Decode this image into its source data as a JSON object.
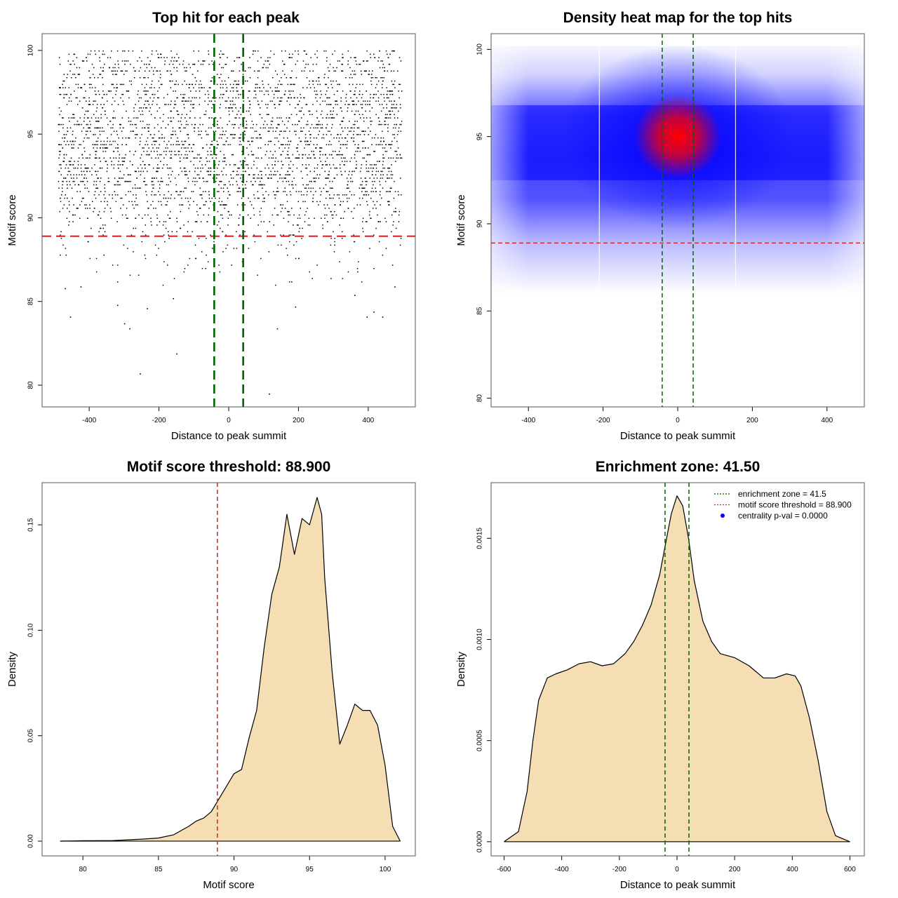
{
  "colors": {
    "threshold_line": "#d62728",
    "zone_line": "#006400",
    "density_fill": "#f5deb3",
    "density_stroke": "#000000",
    "points": "#000000",
    "heat_low": "#ffffff",
    "heat_mid": "#0000ff",
    "heat_high": "#ff0000",
    "legend_point": "#0000ff"
  },
  "chart_data": [
    {
      "id": "top-hits",
      "type": "scatter",
      "title": "Top hit for each peak",
      "xlabel": "Distance to peak summit",
      "ylabel": "Motif score",
      "xlim": [
        -535,
        535
      ],
      "ylim": [
        78.7,
        101
      ],
      "xticks": [
        -400,
        -200,
        0,
        200,
        400
      ],
      "yticks": [
        80,
        85,
        90,
        95,
        100
      ],
      "point_x_range": [
        -490,
        495
      ],
      "point_y_range": [
        79.5,
        100
      ],
      "sparse_points": [
        {
          "x": -255,
          "y": 80.7
        },
        {
          "x": 115,
          "y": 79.5
        },
        {
          "x": -150,
          "y": 81.9
        },
        {
          "x": -300,
          "y": 83.7
        },
        {
          "x": -285,
          "y": 83.4
        },
        {
          "x": 138,
          "y": 83.4
        },
        {
          "x": -455,
          "y": 84.1
        },
        {
          "x": -235,
          "y": 84.6
        },
        {
          "x": -320,
          "y": 84.8
        },
        {
          "x": -160,
          "y": 85.2
        },
        {
          "x": 190,
          "y": 84.7
        },
        {
          "x": 395,
          "y": 84.1
        },
        {
          "x": 440,
          "y": 84.1
        },
        {
          "x": 415,
          "y": 84.4
        },
        {
          "x": 475,
          "y": 85.9
        },
        {
          "x": -470,
          "y": 85.8
        },
        {
          "x": -425,
          "y": 85.9
        },
        {
          "x": 360,
          "y": 85.4
        }
      ],
      "hlines": [
        {
          "y": 88.9,
          "color": "threshold_line",
          "dash": "long"
        }
      ],
      "vlines": [
        {
          "x": -41.5,
          "color": "zone_line",
          "dash": "long"
        },
        {
          "x": 41.5,
          "color": "zone_line",
          "dash": "long"
        }
      ]
    },
    {
      "id": "heatmap",
      "type": "heatmap",
      "title": "Density heat map for the top hits",
      "xlabel": "Distance to peak summit",
      "ylabel": "Motif score",
      "xlim": [
        -500,
        500
      ],
      "ylim": [
        79.5,
        100.9
      ],
      "xticks": [
        -400,
        -200,
        0,
        200,
        400
      ],
      "yticks": [
        80,
        85,
        90,
        95,
        100
      ],
      "hotspot": {
        "x": 0,
        "y": 95
      },
      "band_y_range": [
        92.5,
        96.8
      ],
      "hlines": [
        {
          "y": 88.9,
          "color": "threshold_line"
        }
      ],
      "vlines": [
        {
          "x": -41.5,
          "color": "zone_line"
        },
        {
          "x": 41.5,
          "color": "zone_line"
        }
      ]
    },
    {
      "id": "score-density",
      "type": "area",
      "title": "Motif score threshold: 88.900",
      "xlabel": "Motif score",
      "ylabel": "Density",
      "xlim": [
        77.3,
        102.0
      ],
      "ylim": [
        -0.007,
        0.17
      ],
      "xticks": [
        80,
        85,
        90,
        95,
        100
      ],
      "yticks": [
        0.0,
        0.05,
        0.1,
        0.15
      ],
      "ytick_labels": [
        "0.00",
        "0.05",
        "0.10",
        "0.15"
      ],
      "x": [
        78.5,
        80,
        82,
        84,
        85,
        86,
        86.5,
        87,
        87.5,
        88,
        88.5,
        89,
        89.5,
        90,
        90.5,
        91,
        91.5,
        92,
        92.5,
        93,
        93.5,
        94,
        94.5,
        95,
        95.5,
        95.8,
        96,
        96.5,
        97,
        97.5,
        98,
        98.5,
        99,
        99.5,
        100,
        100.5,
        101
      ],
      "y": [
        0.0,
        0.0002,
        0.0003,
        0.001,
        0.0015,
        0.003,
        0.005,
        0.007,
        0.0095,
        0.011,
        0.014,
        0.02,
        0.026,
        0.032,
        0.034,
        0.049,
        0.062,
        0.092,
        0.117,
        0.13,
        0.155,
        0.136,
        0.153,
        0.15,
        0.163,
        0.155,
        0.125,
        0.08,
        0.046,
        0.055,
        0.065,
        0.062,
        0.062,
        0.055,
        0.036,
        0.007,
        0.0
      ],
      "vlines": [
        {
          "x": 88.9,
          "color": "threshold_line"
        }
      ]
    },
    {
      "id": "distance-density",
      "type": "area",
      "title": "Enrichment zone: 41.50",
      "xlabel": "Distance to peak summit",
      "ylabel": "Density",
      "xlim": [
        -645,
        650
      ],
      "ylim": [
        -7e-05,
        0.001775
      ],
      "xticks": [
        -600,
        -400,
        -200,
        0,
        200,
        400,
        600
      ],
      "yticks": [
        0.0,
        0.0005,
        0.001,
        0.0015
      ],
      "ytick_labels": [
        "0.0000",
        "0.0005",
        "0.0010",
        "0.0015"
      ],
      "x": [
        -600,
        -550,
        -520,
        -500,
        -480,
        -450,
        -420,
        -380,
        -340,
        -300,
        -260,
        -220,
        -180,
        -150,
        -120,
        -90,
        -60,
        -40,
        -20,
        0,
        20,
        40,
        60,
        90,
        120,
        150,
        200,
        250,
        300,
        340,
        380,
        410,
        430,
        460,
        490,
        520,
        550,
        600
      ],
      "y": [
        0.0,
        5e-05,
        0.00025,
        0.0005,
        0.0007,
        0.00081,
        0.00083,
        0.00085,
        0.00088,
        0.00089,
        0.00087,
        0.00088,
        0.00093,
        0.00099,
        0.00107,
        0.00117,
        0.00132,
        0.00147,
        0.00162,
        0.00171,
        0.00166,
        0.0015,
        0.00129,
        0.00109,
        0.00099,
        0.00093,
        0.00091,
        0.00087,
        0.00081,
        0.00081,
        0.00083,
        0.00082,
        0.00077,
        0.00061,
        0.0004,
        0.00015,
        3e-05,
        0.0
      ],
      "vlines": [
        {
          "x": -41.5,
          "color": "zone_line"
        },
        {
          "x": 41.5,
          "color": "zone_line"
        }
      ],
      "legend": {
        "position": "top-right",
        "entries": [
          {
            "label": "enrichment zone = 41.5",
            "kind": "dotted-line",
            "color": "zone_line"
          },
          {
            "label": "motif score threshold = 88.900",
            "kind": "dotted-line",
            "color": "threshold_line"
          },
          {
            "label": "centrality p-val = 0.0000",
            "kind": "point",
            "color": "legend_point"
          }
        ]
      }
    }
  ]
}
